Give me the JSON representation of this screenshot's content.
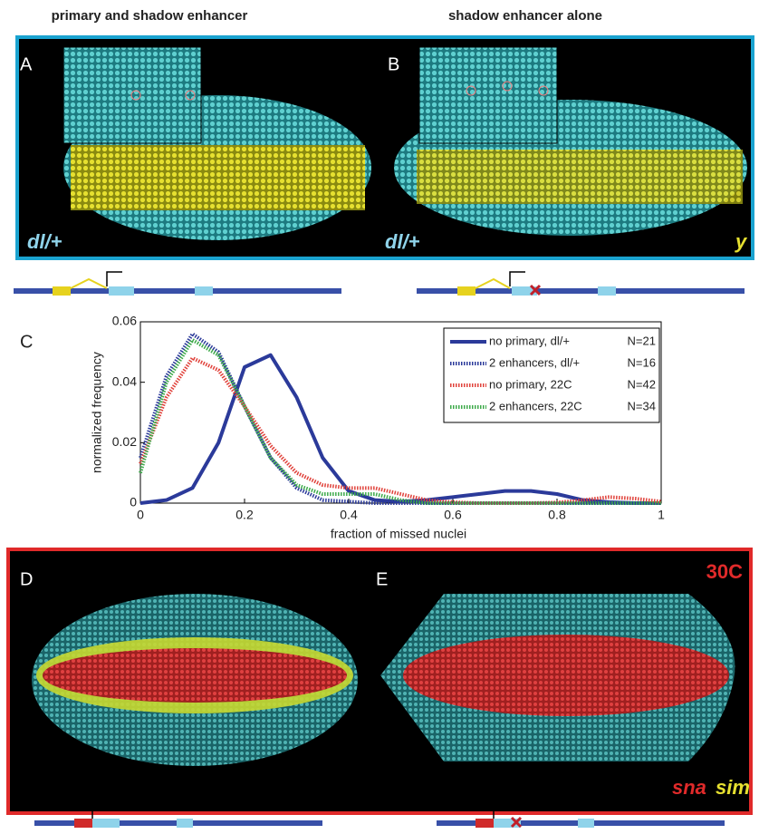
{
  "header": {
    "left": "primary and shadow enhancer",
    "right": "shadow enhancer alone"
  },
  "panels": {
    "A": {
      "label": "A",
      "genotype": "dl/+"
    },
    "B": {
      "label": "B",
      "genotype": "dl/+",
      "stain": "y"
    },
    "D": {
      "label": "D"
    },
    "E": {
      "label": "E",
      "temperature": "30C",
      "stain1": "sna",
      "stain2": "sim"
    },
    "C": {
      "label": "C"
    }
  },
  "chart_data": {
    "type": "line",
    "xlabel": "fraction of missed nuclei",
    "ylabel": "normalized frequency",
    "x": [
      0,
      0.05,
      0.1,
      0.15,
      0.2,
      0.25,
      0.3,
      0.35,
      0.4,
      0.45,
      0.5,
      0.55,
      0.6,
      0.65,
      0.7,
      0.75,
      0.8,
      0.85,
      0.9,
      0.95,
      1
    ],
    "xlim": [
      0,
      1
    ],
    "xticks": [
      0,
      0.2,
      0.4,
      0.6,
      0.8,
      1
    ],
    "ylim": [
      0,
      0.06
    ],
    "yticks": [
      0,
      0.02,
      0.04,
      0.06
    ],
    "series": [
      {
        "name": "no primary, dl/+",
        "n": "N=21",
        "color": "#2b3a9a",
        "style": "solid",
        "values": [
          0,
          0.001,
          0.005,
          0.02,
          0.045,
          0.049,
          0.035,
          0.015,
          0.004,
          0.001,
          0.0005,
          0.001,
          0.002,
          0.003,
          0.004,
          0.004,
          0.003,
          0.001,
          0.0003,
          0,
          0
        ]
      },
      {
        "name": "2 enhancers, dl/+",
        "n": "N=16",
        "color": "#2b3a9a",
        "style": "dotted",
        "values": [
          0.015,
          0.042,
          0.056,
          0.05,
          0.032,
          0.015,
          0.005,
          0.001,
          0.0005,
          0,
          0,
          0,
          0,
          0,
          0,
          0,
          0,
          0,
          0,
          0,
          0
        ]
      },
      {
        "name": "no primary, 22C",
        "n": "N=42",
        "color": "#e0413a",
        "style": "dotted",
        "values": [
          0.013,
          0.035,
          0.048,
          0.044,
          0.032,
          0.019,
          0.01,
          0.006,
          0.005,
          0.005,
          0.003,
          0.001,
          0.0003,
          0,
          0,
          0,
          0.0002,
          0.001,
          0.002,
          0.0015,
          0.0005
        ]
      },
      {
        "name": "2 enhancers, 22C",
        "n": "N=34",
        "color": "#3daa4a",
        "style": "dotted",
        "values": [
          0.01,
          0.04,
          0.054,
          0.049,
          0.032,
          0.015,
          0.006,
          0.003,
          0.003,
          0.003,
          0.001,
          0,
          0,
          0,
          0,
          0,
          0,
          0,
          0,
          0,
          0
        ]
      }
    ]
  }
}
